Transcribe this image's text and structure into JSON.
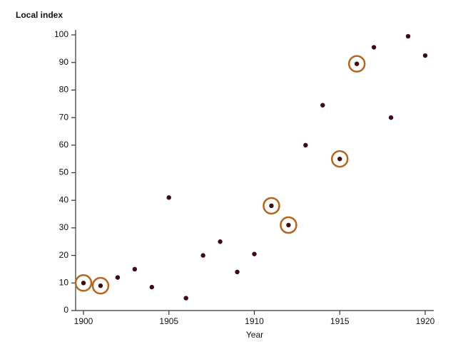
{
  "chart_data": {
    "type": "scatter",
    "y_label": "Local index",
    "x_label": "Year",
    "x": [
      1900,
      1901,
      1902,
      1903,
      1904,
      1905,
      1906,
      1907,
      1908,
      1909,
      1910,
      1911,
      1912,
      1913,
      1914,
      1915,
      1916,
      1917,
      1918,
      1919,
      1920
    ],
    "values": [
      10,
      9,
      12,
      15,
      8.5,
      41,
      4.5,
      20,
      25,
      14,
      20.5,
      38,
      31,
      60,
      74.5,
      55,
      89.5,
      95.5,
      70,
      99.5,
      92.5
    ],
    "highlighted": [
      true,
      true,
      false,
      false,
      false,
      false,
      false,
      false,
      false,
      false,
      false,
      true,
      true,
      false,
      false,
      true,
      true,
      false,
      false,
      false,
      false
    ],
    "color": "#3a0d12",
    "highlight_color": "#b5651d",
    "xlim": [
      1900,
      1920
    ],
    "xticks": [
      1900,
      1905,
      1910,
      1915,
      1920
    ],
    "ylim": [
      0,
      100
    ],
    "yticks": [
      0,
      10,
      20,
      30,
      40,
      50,
      60,
      70,
      80,
      90,
      100
    ]
  }
}
